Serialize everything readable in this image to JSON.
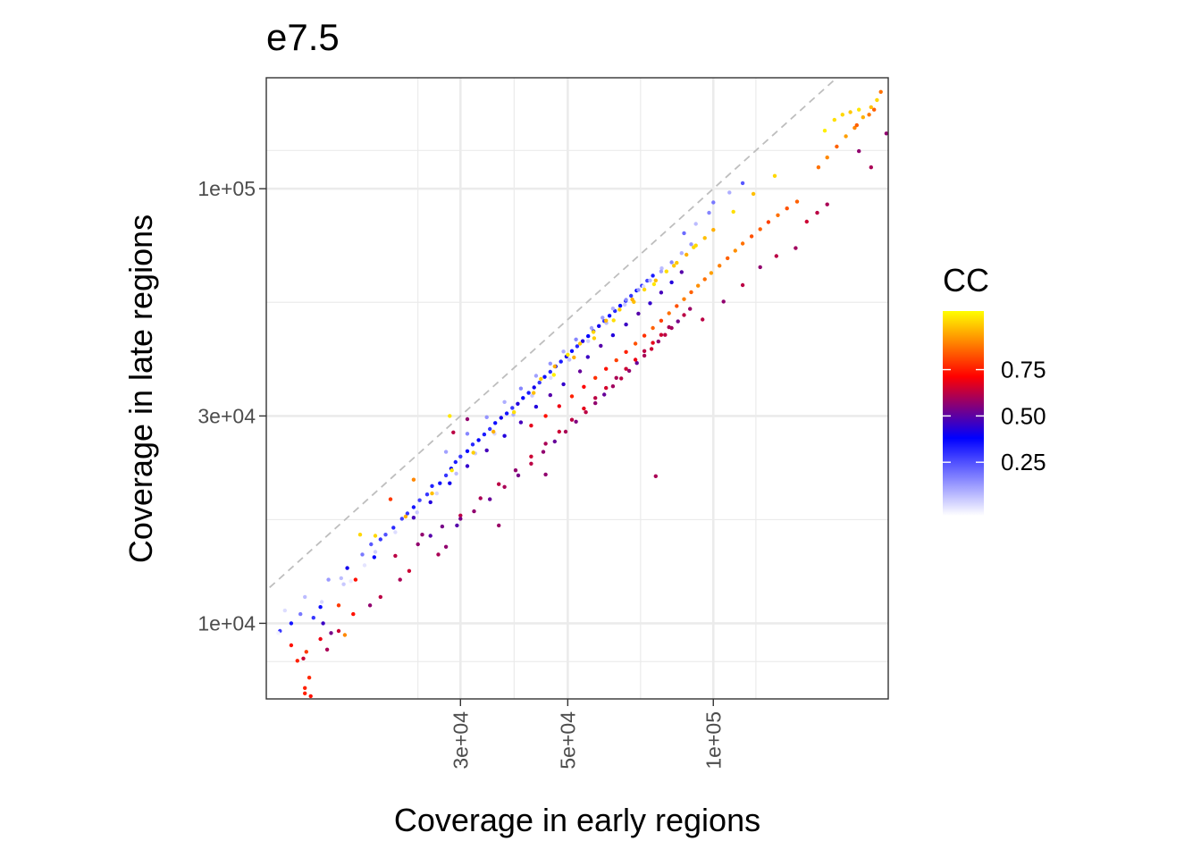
{
  "chart_data": {
    "type": "scatter",
    "title": "e7.5",
    "xlabel": "Coverage in early regions",
    "ylabel": "Coverage in late regions",
    "x_scale": "log10",
    "y_scale": "log10",
    "xlim": [
      11900,
      230000
    ],
    "ylim": [
      6700,
      180000
    ],
    "x_ticks": [
      {
        "value": 30000,
        "label": "3e+04"
      },
      {
        "value": 50000,
        "label": "5e+04"
      },
      {
        "value": 100000,
        "label": "1e+05"
      }
    ],
    "y_ticks": [
      {
        "value": 10000,
        "label": "1e+04"
      },
      {
        "value": 30000,
        "label": "3e+04"
      },
      {
        "value": 100000,
        "label": "1e+05"
      }
    ],
    "grid": true,
    "reference_line": {
      "type": "identity",
      "style": "dashed",
      "color": "#bebebe"
    },
    "legend": {
      "title": "CC",
      "position": "right",
      "type": "colorbar",
      "range": [
        0.0,
        1.0
      ],
      "ticks": [
        {
          "value": 0.25,
          "label": "0.25"
        },
        {
          "value": 0.5,
          "label": "0.50"
        },
        {
          "value": 0.75,
          "label": "0.75"
        }
      ],
      "colors": [
        "#ffffff",
        "#0000ff",
        "#ff0000",
        "#ffff00"
      ]
    },
    "points": [
      [
        12700,
        9600,
        0.3
      ],
      [
        13400,
        10000,
        0.35
      ],
      [
        13400,
        8900,
        0.7
      ],
      [
        14200,
        8300,
        0.62
      ],
      [
        14400,
        8600,
        0.75
      ],
      [
        14000,
        10500,
        0.2
      ],
      [
        14900,
        10300,
        0.3
      ],
      [
        15600,
        10000,
        0.45
      ],
      [
        15400,
        10900,
        0.36
      ],
      [
        16200,
        9500,
        0.52
      ],
      [
        16800,
        11000,
        0.75
      ],
      [
        14600,
        7500,
        0.73
      ],
      [
        14300,
        7100,
        0.72
      ],
      [
        14300,
        6900,
        0.72
      ],
      [
        14700,
        6800,
        0.7
      ],
      [
        15900,
        8700,
        0.58
      ],
      [
        17300,
        9400,
        0.85
      ],
      [
        16000,
        12600,
        0.15
      ],
      [
        17000,
        12700,
        0.1
      ],
      [
        17500,
        13400,
        0.4
      ],
      [
        18200,
        12600,
        0.7
      ],
      [
        18800,
        14400,
        0.2
      ],
      [
        19600,
        15200,
        0.25
      ],
      [
        20500,
        15600,
        0.3
      ],
      [
        19900,
        14200,
        0.38
      ],
      [
        21000,
        16000,
        0.26
      ],
      [
        21800,
        16600,
        0.32
      ],
      [
        22700,
        17400,
        0.28
      ],
      [
        23300,
        17900,
        0.3
      ],
      [
        24000,
        18500,
        0.35
      ],
      [
        24700,
        19200,
        0.28
      ],
      [
        25600,
        19800,
        0.3
      ],
      [
        26200,
        20700,
        0.33
      ],
      [
        27200,
        21000,
        0.35
      ],
      [
        28000,
        21900,
        0.3
      ],
      [
        28700,
        22700,
        0.38
      ],
      [
        29300,
        23500,
        0.34
      ],
      [
        30000,
        24200,
        0.3
      ],
      [
        31000,
        24900,
        0.36
      ],
      [
        31800,
        25800,
        0.32
      ],
      [
        32700,
        26400,
        0.38
      ],
      [
        33600,
        27200,
        0.34
      ],
      [
        34500,
        28000,
        0.3
      ],
      [
        35400,
        28900,
        0.36
      ],
      [
        36400,
        29700,
        0.4
      ],
      [
        37400,
        30400,
        0.35
      ],
      [
        38400,
        31300,
        0.3
      ],
      [
        39400,
        32000,
        0.42
      ],
      [
        40400,
        33000,
        0.38
      ],
      [
        41500,
        33900,
        0.34
      ],
      [
        42600,
        34900,
        0.4
      ],
      [
        43700,
        35800,
        0.3
      ],
      [
        44800,
        36900,
        0.36
      ],
      [
        46000,
        37900,
        0.32
      ],
      [
        47200,
        39000,
        0.38
      ],
      [
        48400,
        40000,
        0.34
      ],
      [
        49700,
        41100,
        0.4
      ],
      [
        51000,
        42300,
        0.36
      ],
      [
        52300,
        43400,
        0.32
      ],
      [
        53700,
        44600,
        0.42
      ],
      [
        55100,
        45800,
        0.38
      ],
      [
        56500,
        47000,
        0.34
      ],
      [
        58000,
        48300,
        0.4
      ],
      [
        59500,
        49600,
        0.3
      ],
      [
        61000,
        51000,
        0.36
      ],
      [
        62600,
        52300,
        0.32
      ],
      [
        64200,
        53800,
        0.38
      ],
      [
        65900,
        55200,
        0.34
      ],
      [
        67600,
        56700,
        0.3
      ],
      [
        69400,
        58300,
        0.36
      ],
      [
        71200,
        59800,
        0.32
      ],
      [
        73000,
        61400,
        0.28
      ],
      [
        75000,
        63100,
        0.34
      ],
      [
        22000,
        16200,
        0.05
      ],
      [
        24400,
        18000,
        0.08
      ],
      [
        26800,
        19900,
        0.06
      ],
      [
        29400,
        22100,
        0.1
      ],
      [
        32200,
        24600,
        0.08
      ],
      [
        35300,
        27300,
        0.06
      ],
      [
        38600,
        30200,
        0.12
      ],
      [
        42200,
        33400,
        0.08
      ],
      [
        46100,
        36700,
        0.05
      ],
      [
        50400,
        40400,
        0.1
      ],
      [
        55100,
        44600,
        0.07
      ],
      [
        60100,
        49100,
        0.1
      ],
      [
        65600,
        54100,
        0.08
      ],
      [
        71700,
        59600,
        0.05
      ],
      [
        78200,
        65600,
        0.1
      ],
      [
        20000,
        15900,
        0.95
      ],
      [
        23100,
        17600,
        0.9
      ],
      [
        26200,
        19900,
        0.92
      ],
      [
        28800,
        22500,
        0.97
      ],
      [
        31900,
        24700,
        0.94
      ],
      [
        35100,
        27600,
        0.9
      ],
      [
        38700,
        30600,
        0.96
      ],
      [
        42500,
        33900,
        0.92
      ],
      [
        46800,
        37300,
        0.98
      ],
      [
        51500,
        40900,
        0.9
      ],
      [
        56700,
        45300,
        0.94
      ],
      [
        62200,
        49800,
        0.96
      ],
      [
        68500,
        54900,
        0.92
      ],
      [
        75400,
        60300,
        0.97
      ],
      [
        82900,
        66500,
        0.93
      ],
      [
        91100,
        73300,
        0.95
      ],
      [
        100000,
        80400,
        0.9
      ],
      [
        110000,
        88500,
        0.96
      ],
      [
        121000,
        97300,
        0.92
      ],
      [
        134000,
        107000,
        0.95
      ],
      [
        28500,
        30000,
        0.97
      ],
      [
        29000,
        27500,
        0.6
      ],
      [
        31000,
        29500,
        0.55
      ],
      [
        24000,
        21400,
        0.85
      ],
      [
        21500,
        19300,
        0.75
      ],
      [
        18600,
        16000,
        0.95
      ],
      [
        22000,
        14300,
        0.6
      ],
      [
        24500,
        15200,
        0.55
      ],
      [
        27000,
        14400,
        0.58
      ],
      [
        29500,
        16800,
        0.48
      ],
      [
        32000,
        18100,
        0.55
      ],
      [
        34500,
        19300,
        0.5
      ],
      [
        37000,
        20600,
        0.58
      ],
      [
        39500,
        21900,
        0.52
      ],
      [
        42000,
        23300,
        0.6
      ],
      [
        44500,
        24800,
        0.55
      ],
      [
        47000,
        26200,
        0.5
      ],
      [
        49500,
        27600,
        0.58
      ],
      [
        52000,
        29100,
        0.53
      ],
      [
        54500,
        30600,
        0.6
      ],
      [
        57000,
        32100,
        0.55
      ],
      [
        59500,
        33600,
        0.5
      ],
      [
        62000,
        35100,
        0.57
      ],
      [
        64500,
        36600,
        0.6
      ],
      [
        67000,
        38100,
        0.55
      ],
      [
        69500,
        39700,
        0.5
      ],
      [
        72000,
        41300,
        0.58
      ],
      [
        74500,
        42800,
        0.62
      ],
      [
        77000,
        44500,
        0.55
      ],
      [
        79500,
        46100,
        0.6
      ],
      [
        82000,
        47800,
        0.57
      ],
      [
        84500,
        49500,
        0.52
      ],
      [
        87000,
        51200,
        0.6
      ],
      [
        89500,
        52900,
        0.56
      ],
      [
        25000,
        16000,
        0.55
      ],
      [
        27500,
        16700,
        0.52
      ],
      [
        30000,
        17700,
        0.6
      ],
      [
        33000,
        19400,
        0.58
      ],
      [
        36000,
        20900,
        0.6
      ],
      [
        39000,
        22500,
        0.55
      ],
      [
        42000,
        24200,
        0.62
      ],
      [
        45000,
        25900,
        0.58
      ],
      [
        48000,
        27600,
        0.62
      ],
      [
        51000,
        29400,
        0.6
      ],
      [
        54000,
        31200,
        0.65
      ],
      [
        57000,
        33000,
        0.6
      ],
      [
        60000,
        34800,
        0.63
      ],
      [
        63000,
        36700,
        0.58
      ],
      [
        66000,
        38500,
        0.62
      ],
      [
        69000,
        40400,
        0.66
      ],
      [
        72000,
        42300,
        0.6
      ],
      [
        75000,
        44200,
        0.65
      ],
      [
        78000,
        46100,
        0.62
      ],
      [
        81000,
        48000,
        0.58
      ],
      [
        42000,
        28500,
        0.65
      ],
      [
        45000,
        30000,
        0.7
      ],
      [
        48000,
        31600,
        0.66
      ],
      [
        51000,
        33300,
        0.72
      ],
      [
        54000,
        35000,
        0.68
      ],
      [
        57000,
        36700,
        0.74
      ],
      [
        60000,
        38500,
        0.7
      ],
      [
        63000,
        40300,
        0.76
      ],
      [
        66000,
        42100,
        0.72
      ],
      [
        69000,
        44000,
        0.78
      ],
      [
        72000,
        45900,
        0.74
      ],
      [
        75000,
        47800,
        0.8
      ],
      [
        78000,
        49700,
        0.76
      ],
      [
        81000,
        51700,
        0.82
      ],
      [
        84000,
        53700,
        0.78
      ],
      [
        87000,
        55700,
        0.84
      ],
      [
        90000,
        57800,
        0.8
      ],
      [
        93000,
        59800,
        0.86
      ],
      [
        96000,
        61900,
        0.82
      ],
      [
        99000,
        64000,
        0.88
      ],
      [
        103000,
        66500,
        0.84
      ],
      [
        107000,
        69200,
        0.8
      ],
      [
        111000,
        72000,
        0.86
      ],
      [
        115000,
        74800,
        0.82
      ],
      [
        120000,
        77700,
        0.78
      ],
      [
        125000,
        80700,
        0.8
      ],
      [
        130000,
        83800,
        0.76
      ],
      [
        136000,
        86900,
        0.82
      ],
      [
        142000,
        90100,
        0.78
      ],
      [
        149000,
        93400,
        0.8
      ],
      [
        156000,
        84000,
        0.62
      ],
      [
        164000,
        88000,
        0.6
      ],
      [
        172000,
        92000,
        0.58
      ],
      [
        148000,
        73000,
        0.57
      ],
      [
        135000,
        70000,
        0.6
      ],
      [
        125000,
        66000,
        0.55
      ],
      [
        115000,
        60000,
        0.6
      ],
      [
        105000,
        55000,
        0.55
      ],
      [
        95000,
        50000,
        0.6
      ],
      [
        165000,
        112000,
        0.82
      ],
      [
        172000,
        118000,
        0.85
      ],
      [
        180000,
        125000,
        0.8
      ],
      [
        188000,
        132000,
        0.88
      ],
      [
        196000,
        138000,
        0.85
      ],
      [
        204000,
        146000,
        0.9
      ],
      [
        212000,
        154000,
        0.92
      ],
      [
        218000,
        160000,
        0.95
      ],
      [
        222000,
        167000,
        0.82
      ],
      [
        215000,
        152000,
        0.8
      ],
      [
        210000,
        148000,
        0.83
      ],
      [
        198000,
        140000,
        0.8
      ],
      [
        200000,
        122000,
        0.55
      ],
      [
        212000,
        112000,
        0.58
      ],
      [
        228000,
        134000,
        0.55
      ],
      [
        170000,
        136000,
        0.98
      ],
      [
        178000,
        144000,
        0.96
      ],
      [
        185000,
        148000,
        0.95
      ],
      [
        192000,
        150000,
        0.93
      ],
      [
        200000,
        152000,
        0.97
      ],
      [
        76000,
        21800,
        0.58
      ],
      [
        45000,
        22000,
        0.55
      ],
      [
        36000,
        16800,
        0.56
      ],
      [
        30000,
        17400,
        0.52
      ],
      [
        28000,
        15000,
        0.55
      ],
      [
        26000,
        15900,
        0.48
      ],
      [
        23500,
        13200,
        0.62
      ],
      [
        22500,
        12600,
        0.58
      ],
      [
        20500,
        11500,
        0.6
      ],
      [
        19500,
        11000,
        0.55
      ],
      [
        18000,
        10500,
        0.7
      ],
      [
        16800,
        9600,
        0.62
      ],
      [
        15400,
        9200,
        0.66
      ],
      [
        13800,
        8200,
        0.72
      ],
      [
        55000,
        41000,
        0.45
      ],
      [
        58500,
        43500,
        0.48
      ],
      [
        62000,
        46000,
        0.42
      ],
      [
        66000,
        48700,
        0.45
      ],
      [
        70000,
        51600,
        0.48
      ],
      [
        74000,
        54500,
        0.44
      ],
      [
        78000,
        57700,
        0.46
      ],
      [
        82000,
        60900,
        0.42
      ],
      [
        86000,
        64300,
        0.48
      ],
      [
        53000,
        38000,
        0.5
      ],
      [
        49000,
        35500,
        0.44
      ],
      [
        46000,
        33500,
        0.48
      ],
      [
        43000,
        31500,
        0.42
      ],
      [
        40000,
        29000,
        0.46
      ],
      [
        37000,
        27000,
        0.42
      ],
      [
        34000,
        25000,
        0.46
      ],
      [
        31000,
        23000,
        0.44
      ],
      [
        28500,
        21000,
        0.4
      ],
      [
        26000,
        19000,
        0.42
      ],
      [
        24000,
        17500,
        0.46
      ],
      [
        59000,
        50500,
        0.15
      ],
      [
        62000,
        53000,
        0.12
      ],
      [
        66000,
        55500,
        0.18
      ],
      [
        70000,
        58500,
        0.15
      ],
      [
        74000,
        61500,
        0.1
      ],
      [
        78000,
        64500,
        0.14
      ],
      [
        82000,
        67700,
        0.18
      ],
      [
        86000,
        71100,
        0.12
      ],
      [
        90000,
        74500,
        0.16
      ],
      [
        56000,
        47800,
        0.14
      ],
      [
        52000,
        45000,
        0.18
      ],
      [
        49000,
        42200,
        0.12
      ],
      [
        46000,
        39600,
        0.16
      ],
      [
        43000,
        37100,
        0.14
      ],
      [
        40000,
        34700,
        0.18
      ],
      [
        37000,
        32300,
        0.12
      ],
      [
        34000,
        29800,
        0.16
      ],
      [
        31000,
        27300,
        0.18
      ],
      [
        28000,
        24800,
        0.14
      ],
      [
        96000,
        77000,
        0.92
      ],
      [
        92000,
        74000,
        0.95
      ],
      [
        88000,
        70500,
        0.9
      ],
      [
        84000,
        67500,
        0.93
      ],
      [
        80000,
        64500,
        0.96
      ],
      [
        76000,
        61500,
        0.92
      ],
      [
        72000,
        58600,
        0.95
      ],
      [
        68000,
        55600,
        0.9
      ],
      [
        64000,
        52700,
        0.94
      ],
      [
        60000,
        49700,
        0.91
      ],
      [
        56500,
        46800,
        0.95
      ],
      [
        53000,
        44000,
        0.93
      ],
      [
        50000,
        41500,
        0.97
      ],
      [
        47000,
        39000,
        0.9
      ],
      [
        44000,
        36500,
        0.94
      ],
      [
        100000,
        93000,
        0.2
      ],
      [
        108000,
        98000,
        0.12
      ],
      [
        115000,
        103000,
        0.25
      ],
      [
        98000,
        88000,
        0.18
      ],
      [
        92000,
        83000,
        0.1
      ],
      [
        87000,
        79000,
        0.22
      ],
      [
        12600,
        9500,
        0.02
      ],
      [
        13000,
        10700,
        0.05
      ],
      [
        17200,
        12300,
        0.08
      ],
      [
        17800,
        12500,
        0.03
      ],
      [
        15500,
        11200,
        0.06
      ],
      [
        19000,
        13600,
        0.04
      ],
      [
        20000,
        14600,
        0.07
      ],
      [
        14300,
        11500,
        0.1
      ]
    ]
  }
}
